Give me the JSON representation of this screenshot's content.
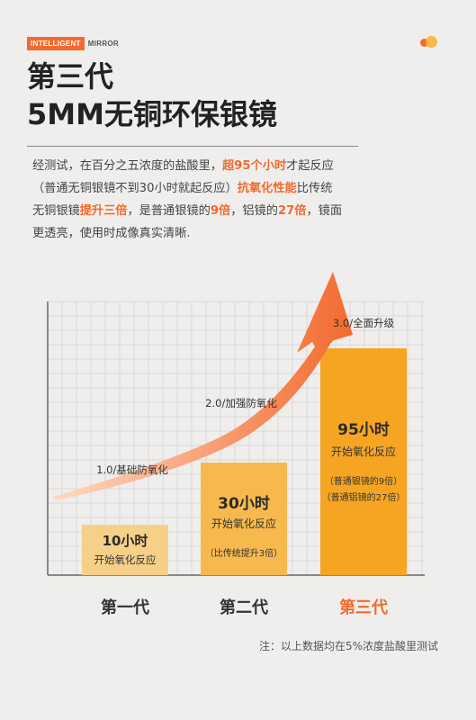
{
  "brand": {
    "part1": "INTELLIGENT",
    "part2": "MIRROR"
  },
  "title": {
    "line1": "第三代",
    "line2": "5MM无铜环保银镜"
  },
  "description": [
    {
      "text": "经测试，在百分之五浓度的盐酸里，",
      "hl": false
    },
    {
      "text": "超95个小时",
      "hl": true
    },
    {
      "text": "才起反应（普通无铜银镜不到30小时就起反应）",
      "hl": false
    },
    {
      "text": "抗氧化性能",
      "hl": true
    },
    {
      "text": "比传统无铜银镜",
      "hl": false
    },
    {
      "text": "提升三倍",
      "hl": true
    },
    {
      "text": "，是普通银镜的",
      "hl": false
    },
    {
      "text": "9倍",
      "hl": true
    },
    {
      "text": "，铝镜的",
      "hl": false
    },
    {
      "text": "27倍",
      "hl": true
    },
    {
      "text": "，镜面更透亮，使用时成像真实清晰.",
      "hl": false
    }
  ],
  "chart_data": {
    "type": "bar",
    "categories": [
      "第一代",
      "第二代",
      "第三代"
    ],
    "values": [
      10,
      30,
      95
    ],
    "value_labels": [
      "10小时",
      "30小时",
      "95小时"
    ],
    "sub_labels": [
      "开始氧化反应",
      "开始氧化反应",
      "开始氧化反应"
    ],
    "extra_notes": [
      [],
      [
        "（比传统提升3倍）"
      ],
      [
        "（普通银镜的9倍）",
        "（普通铝镜的27倍）"
      ]
    ],
    "trend_labels": [
      "1.0/基础防氧化",
      "2.0/加强防氧化",
      "3.0/全面升级"
    ],
    "bar_colors": [
      "#f6cf88",
      "#f7b94e",
      "#f6a523"
    ],
    "highlight_index": 2,
    "accent_color": "#f26a2e",
    "ylim": [
      0,
      100
    ],
    "grid": true,
    "title": "",
    "xlabel": "",
    "ylabel": ""
  },
  "footnote": "注：以上数据均在5%浓度盐酸里测试"
}
